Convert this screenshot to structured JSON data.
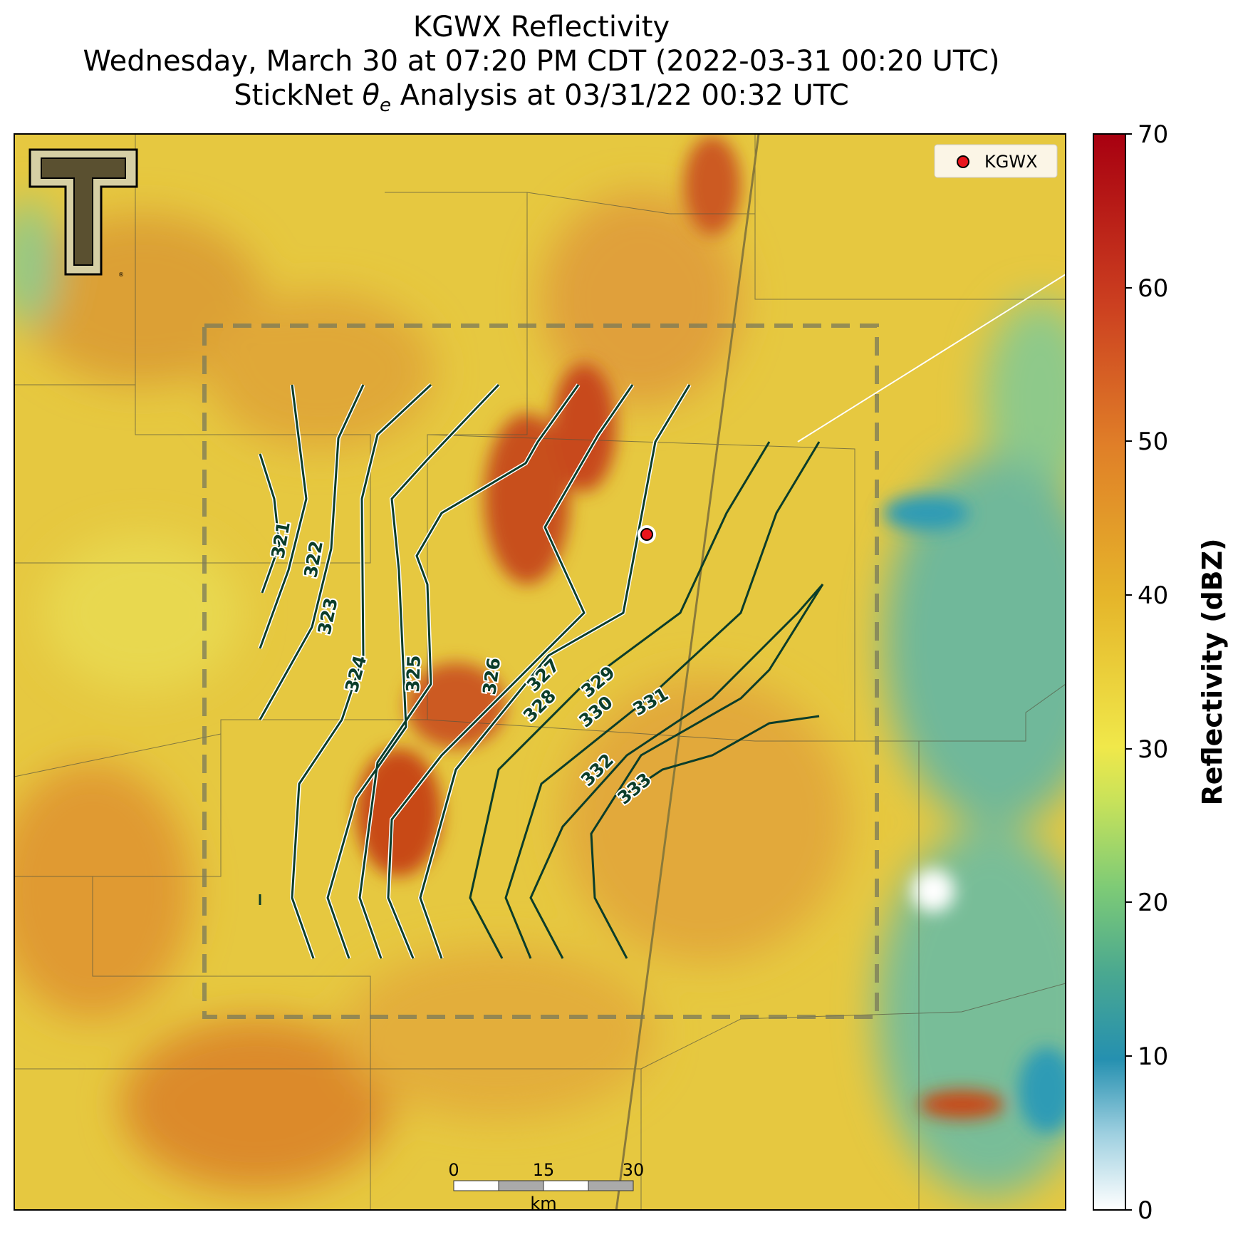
{
  "title": {
    "line1": "KGWX Reflectivity",
    "line2": "Wednesday, March 30 at 07:20 PM CDT (2022-03-31 00:20 UTC)",
    "line3_prefix": "StickNet ",
    "line3_theta": "θ",
    "line3_sub": "e",
    "line3_suffix": " Analysis at 03/31/22 00:32 UTC"
  },
  "legend": {
    "label": "KGWX"
  },
  "colorbar": {
    "label": "Reflectivity (dBZ)",
    "ticks": [
      "0",
      "10",
      "20",
      "30",
      "40",
      "50",
      "60",
      "70"
    ]
  },
  "scalebar": {
    "ticks": [
      "0",
      "15",
      "30"
    ],
    "unit": "km"
  },
  "contour_labels": [
    "321",
    "322",
    "323",
    "324",
    "325",
    "326",
    "327",
    "328",
    "329",
    "330",
    "331",
    "332",
    "333"
  ],
  "colors": {
    "contour": "#0b3d2a",
    "radar_marker": "#e8141c",
    "background_field": "#e6c43c",
    "high_reflectivity": "#c8501e",
    "low_reflectivity": "#2f9bb5",
    "analysis_box": "#7a7a5a"
  }
}
